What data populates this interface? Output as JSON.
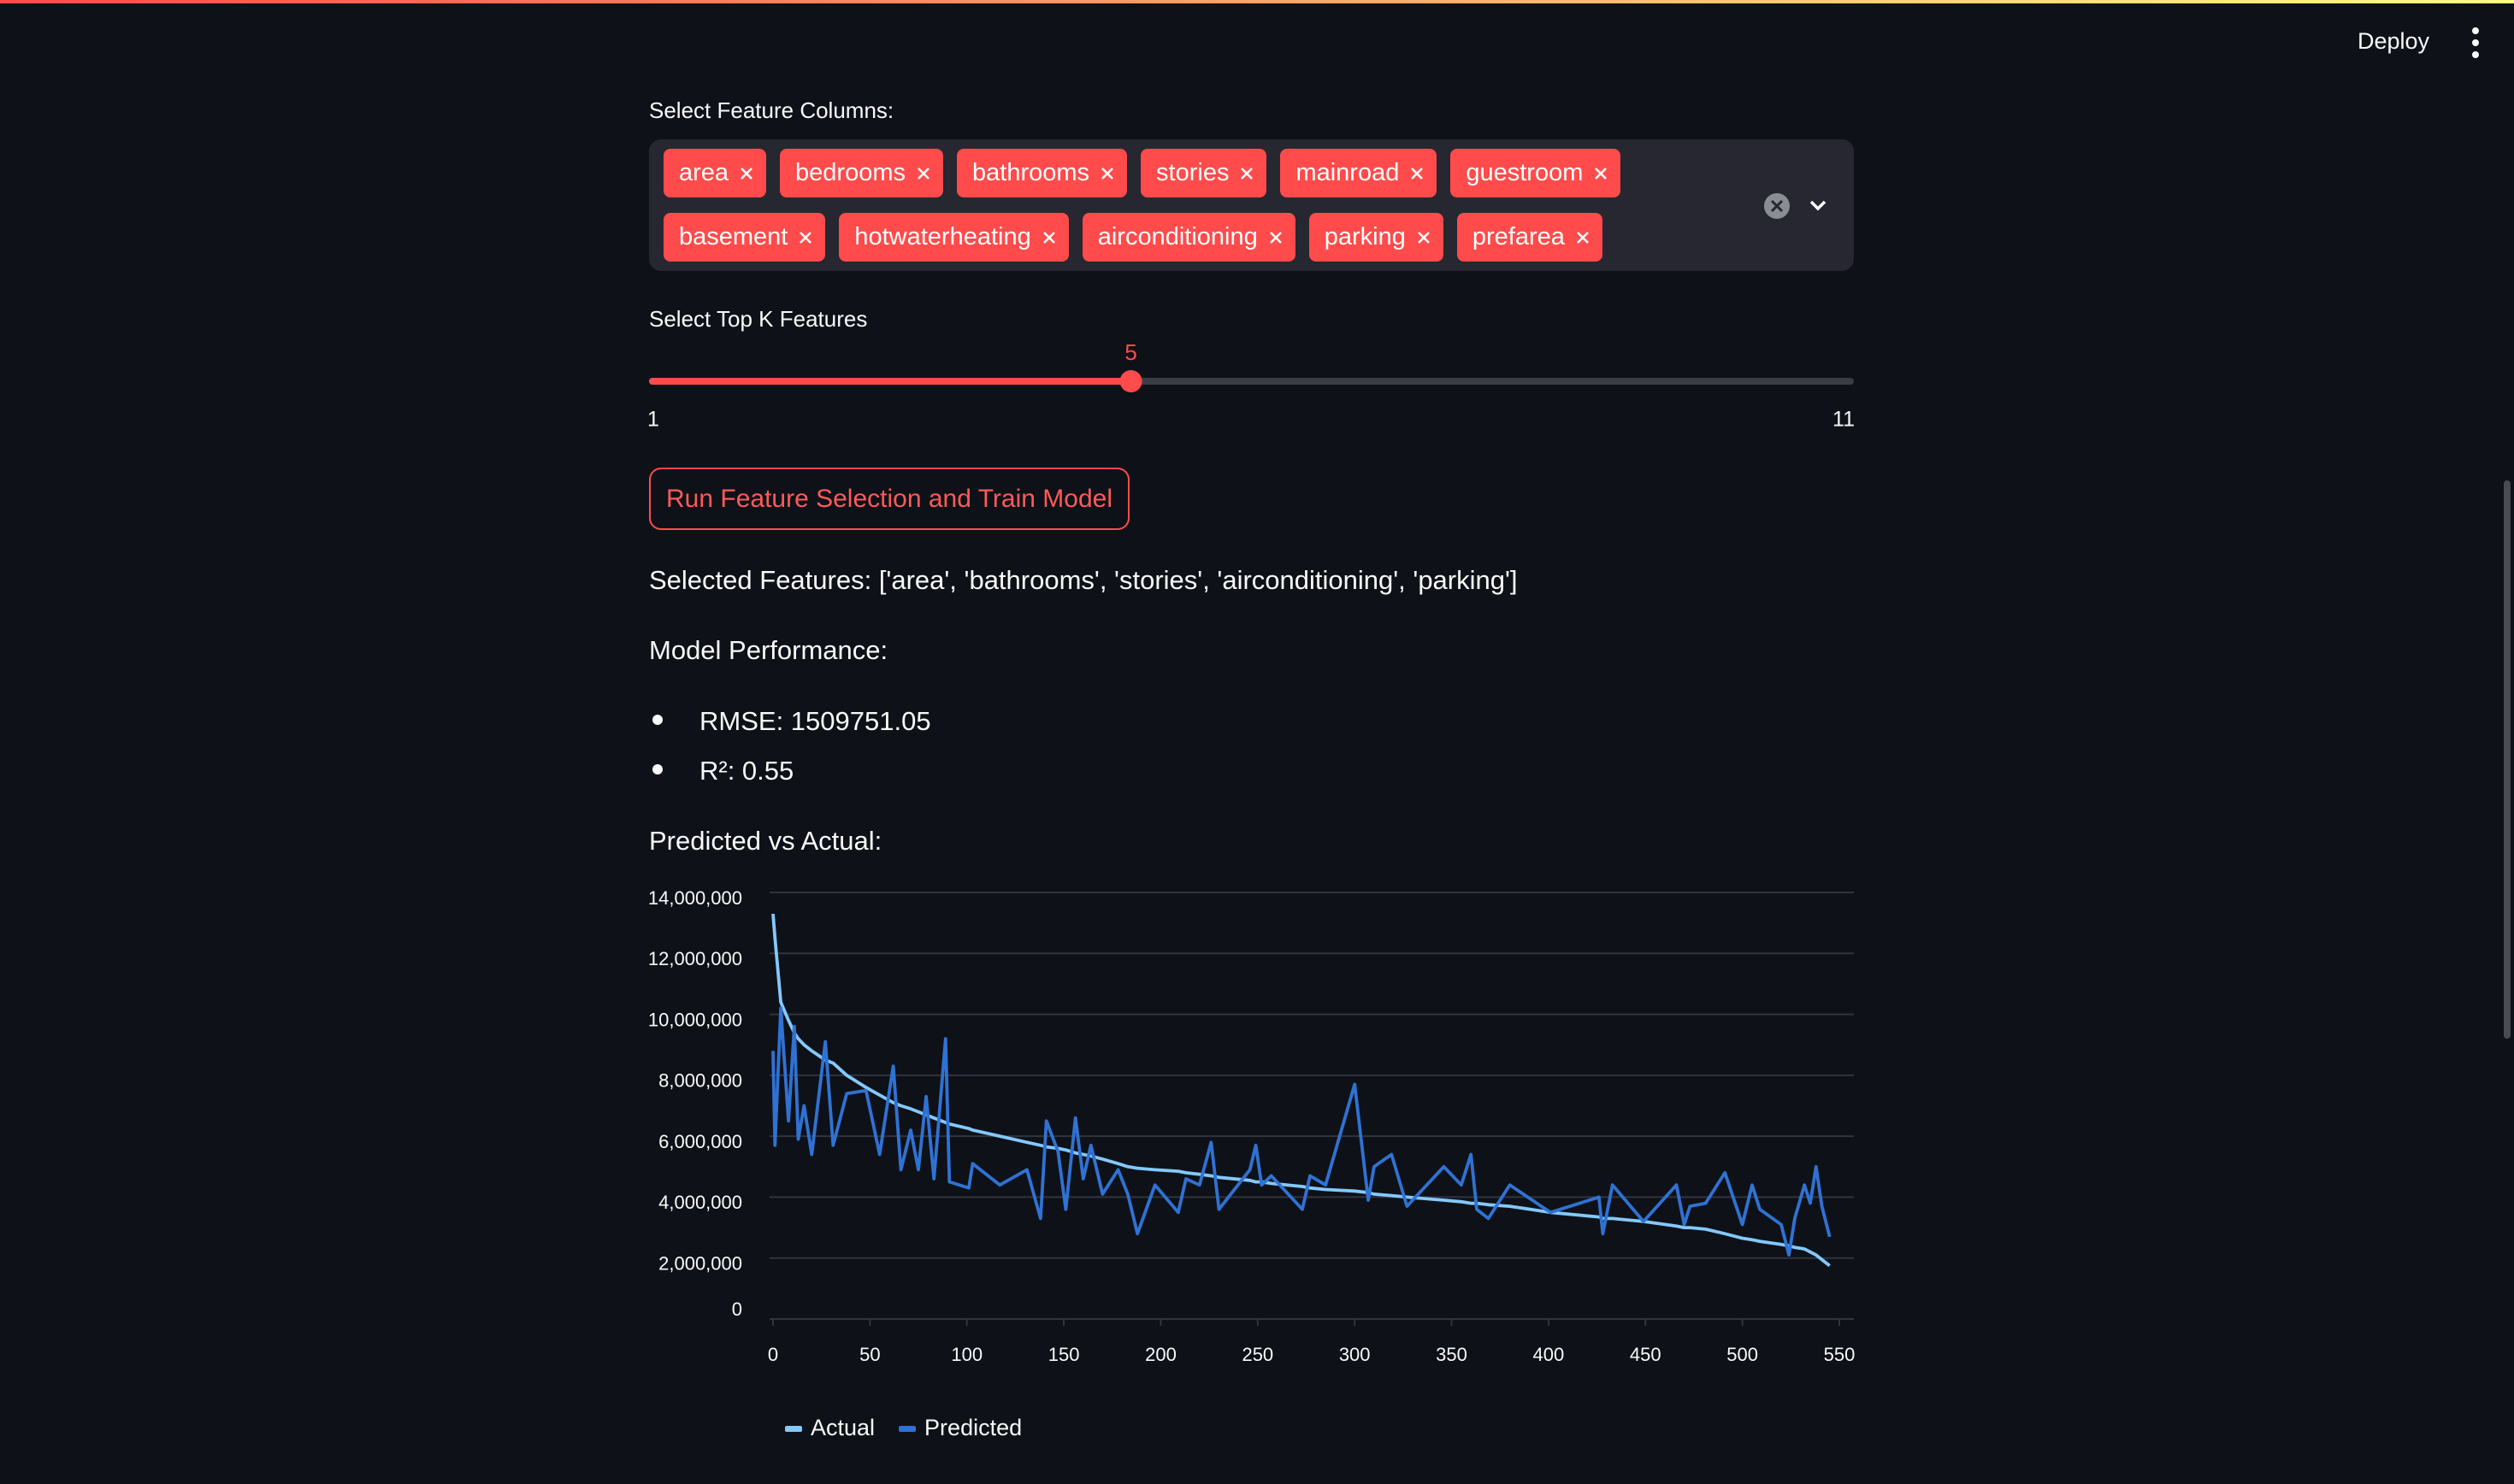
{
  "header": {
    "deploy": "Deploy"
  },
  "features": {
    "label": "Select Feature Columns:",
    "tags": [
      "area",
      "bedrooms",
      "bathrooms",
      "stories",
      "mainroad",
      "guestroom",
      "basement",
      "hotwaterheating",
      "airconditioning",
      "parking",
      "prefarea"
    ]
  },
  "slider": {
    "label": "Select Top K Features",
    "min": 1,
    "max": 11,
    "value": 5
  },
  "button": "Run Feature Selection and Train Model",
  "results": {
    "selected": "Selected Features: ['area', 'bathrooms', 'stories', 'airconditioning', 'parking']",
    "performance_title": "Model Performance:",
    "metrics": [
      "RMSE: 1509751.05",
      "R²: 0.55"
    ],
    "chart_title": "Predicted vs Actual:"
  },
  "chart_data": {
    "type": "line",
    "x": [
      0,
      1,
      4,
      8,
      11,
      13,
      16,
      20,
      27,
      31,
      38,
      48,
      55,
      62,
      66,
      71,
      75,
      79,
      83,
      89,
      91,
      101,
      103,
      117,
      131,
      138,
      141,
      147,
      151,
      156,
      160,
      164,
      170,
      178,
      183,
      188,
      197,
      209,
      213,
      220,
      226,
      230,
      246,
      249,
      252,
      257,
      273,
      277,
      285,
      300,
      307,
      310,
      319,
      327,
      346,
      355,
      360,
      363,
      369,
      380,
      401,
      426,
      428,
      433,
      449,
      466,
      470,
      473,
      481,
      491,
      500,
      505,
      509,
      520,
      524,
      527,
      532,
      535,
      538,
      541,
      545
    ],
    "series": [
      {
        "name": "Actual",
        "color": "#83c9ff",
        "values": [
          13300000,
          12500000,
          10400000,
          9800000,
          9400000,
          9200000,
          9000000,
          8800000,
          8500000,
          8400000,
          8000000,
          7600000,
          7350000,
          7100000,
          7000000,
          6900000,
          6800000,
          6700000,
          6600000,
          6450000,
          6400000,
          6250000,
          6200000,
          6000000,
          5800000,
          5700000,
          5650000,
          5600000,
          5550000,
          5450000,
          5400000,
          5350000,
          5250000,
          5100000,
          5000000,
          4950000,
          4900000,
          4850000,
          4800000,
          4750000,
          4700000,
          4650000,
          4550000,
          4500000,
          4500000,
          4450000,
          4350000,
          4300000,
          4250000,
          4200000,
          4150000,
          4100000,
          4050000,
          4000000,
          3900000,
          3850000,
          3800000,
          3800000,
          3750000,
          3700000,
          3500000,
          3350000,
          3300000,
          3300000,
          3200000,
          3050000,
          3000000,
          3000000,
          2950000,
          2800000,
          2650000,
          2600000,
          2550000,
          2450000,
          2400000,
          2350000,
          2300000,
          2200000,
          2100000,
          1950000,
          1750000
        ]
      },
      {
        "name": "Predicted",
        "color": "#2f72d4",
        "values": [
          8800000,
          5700000,
          10200000,
          6500000,
          9600000,
          5900000,
          7000000,
          5400000,
          9100000,
          5700000,
          7400000,
          7500000,
          5400000,
          8300000,
          4900000,
          6200000,
          4900000,
          7300000,
          4600000,
          9200000,
          4500000,
          4300000,
          5100000,
          4400000,
          4900000,
          3300000,
          6500000,
          5500000,
          3600000,
          6600000,
          4600000,
          5700000,
          4100000,
          4900000,
          4100000,
          2800000,
          4400000,
          3500000,
          4600000,
          4400000,
          5800000,
          3600000,
          4900000,
          5700000,
          4400000,
          4700000,
          3600000,
          4700000,
          4400000,
          7700000,
          3900000,
          5000000,
          5400000,
          3700000,
          5000000,
          4400000,
          5400000,
          3600000,
          3300000,
          4400000,
          3500000,
          4000000,
          2800000,
          4400000,
          3200000,
          4400000,
          3100000,
          3700000,
          3800000,
          4800000,
          3100000,
          4400000,
          3600000,
          3100000,
          2100000,
          3300000,
          4400000,
          3800000,
          5000000,
          3700000,
          2700000
        ]
      }
    ],
    "xlim": [
      0,
      550
    ],
    "xticks": [
      0,
      50,
      100,
      150,
      200,
      250,
      300,
      350,
      400,
      450,
      500,
      550
    ],
    "ylim": [
      0,
      14000000
    ],
    "yticks": [
      0,
      {
        "value": 2000000,
        "label": "2,000,000"
      },
      {
        "value": 4000000,
        "label": "4,000,000"
      },
      {
        "value": 6000000,
        "label": "6,000,000"
      },
      {
        "value": 8000000,
        "label": "8,000,000"
      },
      {
        "value": 10000000,
        "label": "10,000,000"
      },
      {
        "value": 12000000,
        "label": "12,000,000"
      },
      {
        "value": 14000000,
        "label": "14,000,000"
      }
    ],
    "grid": true,
    "legend": "bottom"
  }
}
